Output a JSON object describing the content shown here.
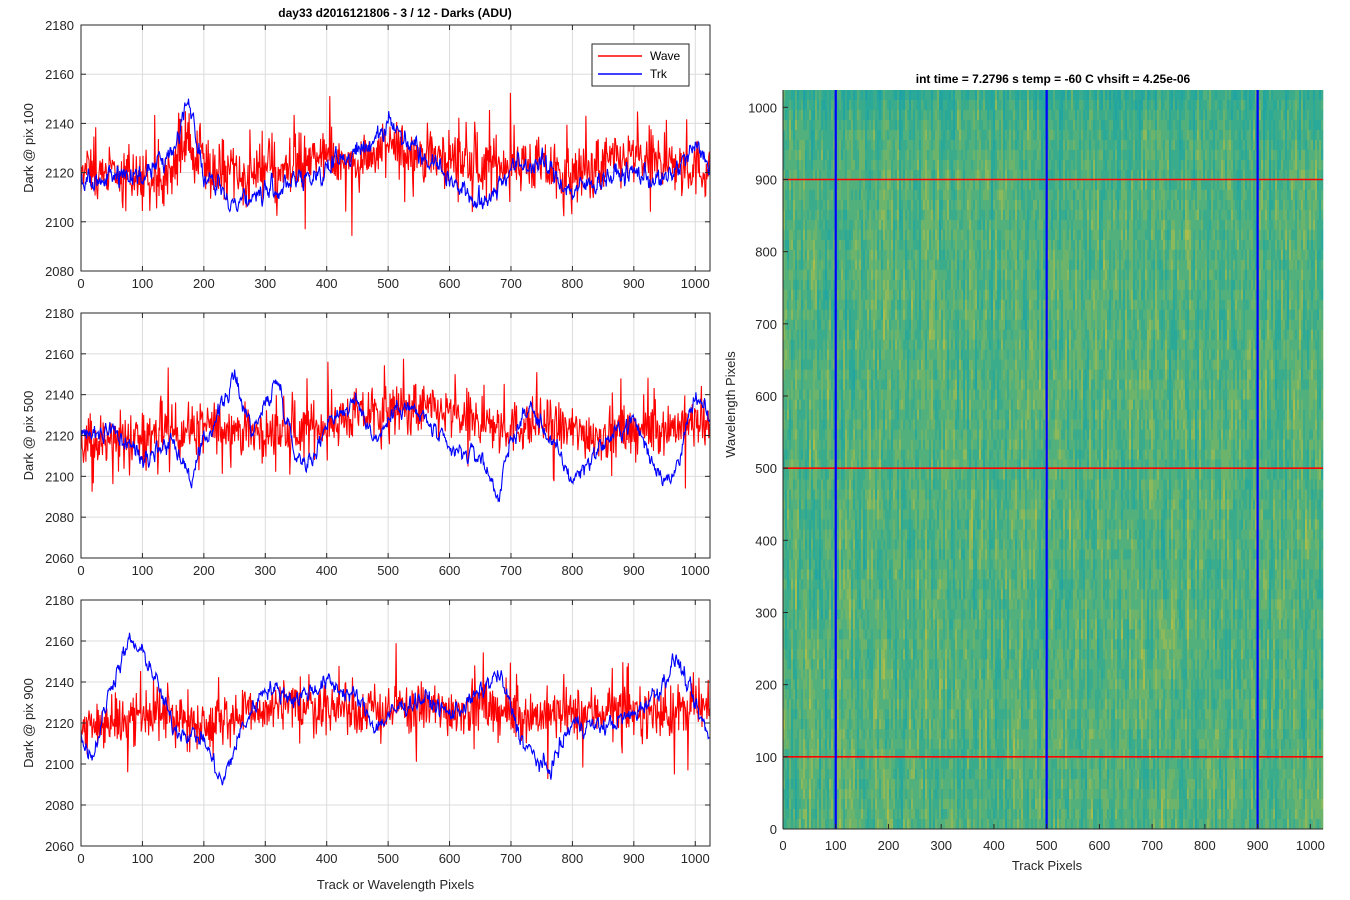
{
  "figure_title": "day33 d2016121806 - 3 / 12 - Darks (ADU)",
  "heatmap_title": "int time = 7.2796 s    temp = -60 C    vhsift = 4.25e-06",
  "colors": {
    "wave": "#ff0000",
    "trk": "#0000ff",
    "grid": "#dcdcdc",
    "axis": "#262626",
    "heat_low": "#1aa0a8",
    "heat_high": "#c8c83c"
  },
  "chart_data": [
    {
      "type": "line",
      "xlabel": "",
      "ylabel": "Dark @ pix 100",
      "xlim": [
        0,
        1024
      ],
      "ylim": [
        2080,
        2180
      ],
      "xticks": [
        0,
        100,
        200,
        300,
        400,
        500,
        600,
        700,
        800,
        900,
        1000
      ],
      "yticks": [
        2080,
        2100,
        2120,
        2140,
        2160,
        2180
      ],
      "grid": true,
      "legend": "top-right",
      "series": [
        {
          "name": "Wave",
          "color": "#ff0000",
          "mean": 2122,
          "noise": 11,
          "bumps": [
            [
              170,
              15,
              30
            ],
            [
              560,
              8,
              80
            ],
            [
              900,
              6,
              60
            ]
          ],
          "x": [
            0,
            50,
            100,
            150,
            175,
            200,
            250,
            300,
            350,
            400,
            450,
            500,
            550,
            600,
            650,
            700,
            750,
            800,
            850,
            900,
            950,
            1000,
            1024
          ],
          "y": [
            2118,
            2120,
            2118,
            2121,
            2135,
            2122,
            2117,
            2120,
            2124,
            2126,
            2124,
            2130,
            2128,
            2126,
            2122,
            2125,
            2122,
            2118,
            2124,
            2126,
            2124,
            2122,
            2120
          ]
        },
        {
          "name": "Trk",
          "color": "#0000ff",
          "mean": 2118,
          "noise": 5,
          "x": [
            0,
            50,
            100,
            150,
            175,
            200,
            250,
            300,
            350,
            400,
            450,
            500,
            550,
            600,
            650,
            700,
            750,
            800,
            850,
            900,
            950,
            1000,
            1024
          ],
          "y": [
            2115,
            2120,
            2118,
            2128,
            2152,
            2118,
            2108,
            2112,
            2116,
            2122,
            2128,
            2140,
            2130,
            2118,
            2106,
            2122,
            2124,
            2112,
            2118,
            2120,
            2116,
            2130,
            2124
          ]
        }
      ]
    },
    {
      "type": "line",
      "xlabel": "",
      "ylabel": "Dark @ pix 500",
      "xlim": [
        0,
        1024
      ],
      "ylim": [
        2060,
        2180
      ],
      "xticks": [
        0,
        100,
        200,
        300,
        400,
        500,
        600,
        700,
        800,
        900,
        1000
      ],
      "yticks": [
        2060,
        2080,
        2100,
        2120,
        2140,
        2160,
        2180
      ],
      "grid": true,
      "series": [
        {
          "name": "Wave",
          "color": "#ff0000",
          "mean": 2122,
          "noise": 12,
          "x": [
            0,
            50,
            100,
            150,
            200,
            250,
            300,
            350,
            400,
            450,
            500,
            550,
            600,
            650,
            700,
            750,
            800,
            850,
            900,
            950,
            1000,
            1024
          ],
          "y": [
            2116,
            2118,
            2120,
            2122,
            2124,
            2124,
            2120,
            2122,
            2126,
            2130,
            2132,
            2134,
            2130,
            2126,
            2124,
            2126,
            2122,
            2120,
            2122,
            2124,
            2126,
            2122
          ]
        },
        {
          "name": "Trk",
          "color": "#0000ff",
          "mean": 2120,
          "noise": 5,
          "x": [
            0,
            50,
            100,
            150,
            180,
            200,
            250,
            280,
            320,
            350,
            380,
            400,
            450,
            480,
            520,
            560,
            600,
            650,
            680,
            700,
            730,
            760,
            800,
            850,
            900,
            930,
            960,
            1000,
            1024
          ],
          "y": [
            2120,
            2122,
            2110,
            2118,
            2098,
            2116,
            2148,
            2122,
            2148,
            2110,
            2108,
            2128,
            2136,
            2118,
            2136,
            2128,
            2112,
            2110,
            2090,
            2118,
            2134,
            2120,
            2098,
            2116,
            2128,
            2108,
            2096,
            2138,
            2128
          ]
        }
      ]
    },
    {
      "type": "line",
      "xlabel": "Track or Wavelength Pixels",
      "ylabel": "Dark @ pix 900",
      "xlim": [
        0,
        1024
      ],
      "ylim": [
        2060,
        2180
      ],
      "xticks": [
        0,
        100,
        200,
        300,
        400,
        500,
        600,
        700,
        800,
        900,
        1000
      ],
      "yticks": [
        2060,
        2080,
        2100,
        2120,
        2140,
        2160,
        2180
      ],
      "grid": true,
      "series": [
        {
          "name": "Wave",
          "color": "#ff0000",
          "mean": 2124,
          "noise": 12,
          "x": [
            0,
            50,
            100,
            150,
            200,
            250,
            300,
            350,
            400,
            450,
            500,
            550,
            600,
            650,
            700,
            750,
            800,
            850,
            900,
            950,
            1000,
            1024
          ],
          "y": [
            2118,
            2120,
            2124,
            2124,
            2120,
            2124,
            2126,
            2128,
            2128,
            2126,
            2126,
            2128,
            2126,
            2128,
            2124,
            2124,
            2124,
            2126,
            2126,
            2124,
            2128,
            2124
          ]
        },
        {
          "name": "Trk",
          "color": "#0000ff",
          "mean": 2122,
          "noise": 5,
          "x": [
            0,
            20,
            50,
            80,
            110,
            150,
            200,
            230,
            260,
            300,
            350,
            400,
            450,
            480,
            520,
            560,
            600,
            640,
            680,
            720,
            760,
            800,
            850,
            900,
            940,
            970,
            1000,
            1024
          ],
          "y": [
            2112,
            2104,
            2140,
            2160,
            2150,
            2118,
            2112,
            2090,
            2116,
            2138,
            2132,
            2140,
            2132,
            2118,
            2128,
            2132,
            2124,
            2132,
            2144,
            2110,
            2096,
            2120,
            2118,
            2124,
            2136,
            2152,
            2128,
            2112
          ]
        }
      ]
    },
    {
      "type": "heatmap",
      "title": "int time = 7.2796 s    temp = -60 C    vhsift = 4.25e-06",
      "xlabel": "Track Pixels",
      "ylabel": "Wavelength Pixels",
      "xlim": [
        0,
        1024
      ],
      "ylim": [
        0,
        1024
      ],
      "xticks": [
        0,
        100,
        200,
        300,
        400,
        500,
        600,
        700,
        800,
        900,
        1000
      ],
      "yticks": [
        0,
        100,
        200,
        300,
        400,
        500,
        600,
        700,
        800,
        900,
        1000
      ],
      "vertical_markers": [
        100,
        500,
        900
      ],
      "horizontal_markers": [
        100,
        500,
        900
      ],
      "vertical_marker_color": "#0000ff",
      "horizontal_marker_color": "#ff0000"
    }
  ],
  "legend": {
    "entries": [
      {
        "name": "Wave",
        "color": "#ff0000"
      },
      {
        "name": "Trk",
        "color": "#0000ff"
      }
    ]
  }
}
